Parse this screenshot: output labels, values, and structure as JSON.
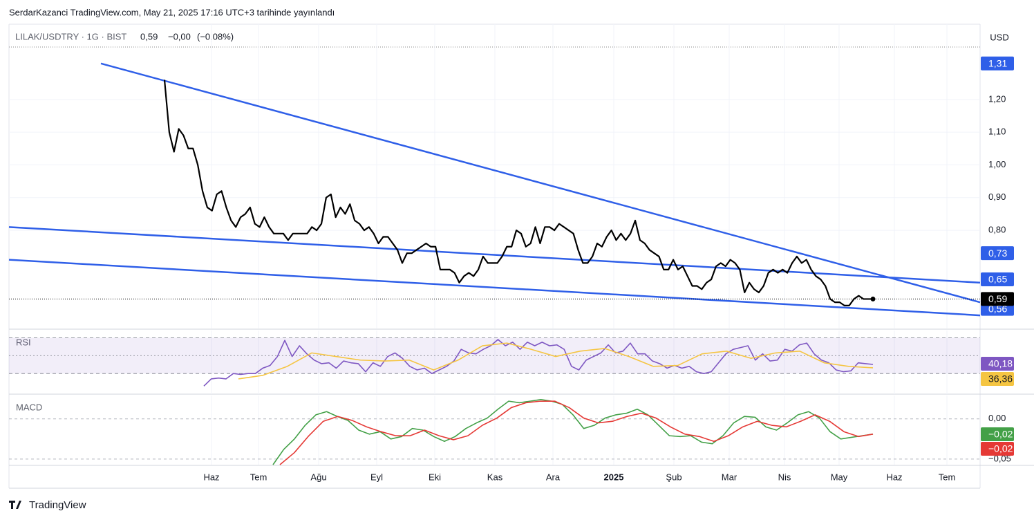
{
  "header": {
    "publisher": "SerdarKazanci TradingView.com, May 21, 2025 17:16 UTC+3 tarihinde yayınlandı",
    "symbol": "LILAK/USDTRY · 1G · BIST",
    "last": "0,59",
    "change": "−0,00",
    "change_pct": "(−0,08%)",
    "currency": "USD",
    "brand": "TradingView"
  },
  "chart_data": [
    {
      "type": "line",
      "title": "LILAK/USDTRY",
      "x_labels": [
        "Haz",
        "Tem",
        "Ağu",
        "Eyl",
        "Eki",
        "Kas",
        "Ara",
        "2025",
        "Şub",
        "Mar",
        "Nis",
        "May",
        "Haz",
        "Tem"
      ],
      "ylim": [
        0.5,
        1.43
      ],
      "yticks": [
        {
          "value": 0.8,
          "label": "0,80"
        },
        {
          "value": 0.9,
          "label": "0,90"
        },
        {
          "value": 1.0,
          "label": "1,00"
        },
        {
          "value": 1.1,
          "label": "1,10"
        },
        {
          "value": 1.2,
          "label": "1,20"
        }
      ],
      "grid": true,
      "series": [
        {
          "name": "LILAK/USDTRY",
          "color": "#000000",
          "values": [
            1.26,
            1.1,
            1.04,
            1.11,
            1.09,
            1.05,
            1.05,
            1.0,
            0.92,
            0.87,
            0.86,
            0.91,
            0.92,
            0.87,
            0.83,
            0.81,
            0.84,
            0.85,
            0.87,
            0.82,
            0.81,
            0.84,
            0.81,
            0.79,
            0.79,
            0.79,
            0.77,
            0.79,
            0.79,
            0.79,
            0.79,
            0.81,
            0.8,
            0.82,
            0.9,
            0.91,
            0.84,
            0.87,
            0.85,
            0.88,
            0.83,
            0.82,
            0.8,
            0.81,
            0.79,
            0.76,
            0.78,
            0.78,
            0.76,
            0.74,
            0.7,
            0.73,
            0.73,
            0.74,
            0.75,
            0.76,
            0.75,
            0.75,
            0.68,
            0.68,
            0.68,
            0.67,
            0.64,
            0.66,
            0.67,
            0.66,
            0.68,
            0.72,
            0.7,
            0.7,
            0.7,
            0.72,
            0.75,
            0.75,
            0.8,
            0.79,
            0.75,
            0.76,
            0.81,
            0.76,
            0.81,
            0.81,
            0.8,
            0.82,
            0.81,
            0.8,
            0.79,
            0.74,
            0.7,
            0.7,
            0.72,
            0.76,
            0.75,
            0.78,
            0.8,
            0.77,
            0.79,
            0.77,
            0.79,
            0.83,
            0.77,
            0.76,
            0.74,
            0.73,
            0.72,
            0.68,
            0.68,
            0.71,
            0.68,
            0.69,
            0.66,
            0.63,
            0.63,
            0.62,
            0.64,
            0.65,
            0.69,
            0.7,
            0.69,
            0.71,
            0.7,
            0.68,
            0.61,
            0.64,
            0.62,
            0.61,
            0.63,
            0.67,
            0.68,
            0.67,
            0.68,
            0.67,
            0.7,
            0.72,
            0.7,
            0.71,
            0.68,
            0.66,
            0.65,
            0.63,
            0.59,
            0.58,
            0.58,
            0.57,
            0.57,
            0.59,
            0.6,
            0.59,
            0.59,
            0.59
          ]
        }
      ],
      "trend_lines": [
        {
          "color": "#2f5fe8",
          "values": [
            1.31,
            0.58
          ]
        },
        {
          "color": "#2f5fe8",
          "values": [
            0.81,
            0.64
          ]
        },
        {
          "color": "#2f5fe8",
          "values": [
            0.71,
            0.54
          ]
        }
      ],
      "badges": [
        {
          "value": 1.31,
          "label": "1,31",
          "color": "#2f5fe8"
        },
        {
          "value": 0.73,
          "label": "0,73",
          "color": "#2f5fe8"
        },
        {
          "value": 0.65,
          "label": "0,65",
          "color": "#2f5fe8"
        },
        {
          "value": 0.56,
          "label": "0,56",
          "color": "#2f5fe8"
        },
        {
          "value": 0.59,
          "label": "0,59",
          "color": "#000000"
        }
      ]
    },
    {
      "type": "line",
      "title": "RSI",
      "ylim": [
        7,
        78
      ],
      "levels": [
        70,
        50,
        30
      ],
      "series": [
        {
          "name": "RSI",
          "color": "#7e57c2",
          "values": [
            16,
            24,
            25,
            24,
            30,
            29,
            30,
            30,
            36,
            39,
            49,
            67,
            49,
            61,
            52,
            45,
            41,
            42,
            36,
            44,
            42,
            41,
            32,
            42,
            38,
            49,
            53,
            47,
            38,
            34,
            36,
            30,
            34,
            38,
            44,
            57,
            53,
            52,
            57,
            61,
            68,
            61,
            65,
            57,
            65,
            61,
            65,
            61,
            62,
            57,
            38,
            34,
            45,
            49,
            53,
            62,
            53,
            55,
            64,
            52,
            52,
            44,
            41,
            36,
            39,
            36,
            38,
            32,
            30,
            32,
            42,
            52,
            57,
            59,
            61,
            45,
            52,
            44,
            45,
            57,
            55,
            62,
            64,
            52,
            45,
            42,
            34,
            32,
            33,
            42,
            41,
            40.18
          ]
        },
        {
          "name": "RSI MA",
          "color": "#f5c542",
          "values": [
            24,
            28,
            38,
            53,
            49,
            45,
            44,
            45,
            34,
            45,
            61,
            64,
            57,
            49,
            55,
            58,
            49,
            38,
            39,
            52,
            55,
            47,
            53,
            55,
            42,
            38,
            36.36
          ]
        }
      ],
      "badges": [
        {
          "value": 40.18,
          "label": "40,18",
          "color": "#7e57c2"
        },
        {
          "value": 36.36,
          "label": "36,36",
          "color": "#f5c542"
        }
      ]
    },
    {
      "type": "line",
      "title": "MACD",
      "ylim": [
        -0.057,
        0.029
      ],
      "yticks": [
        {
          "value": 0,
          "label": "0,00"
        },
        {
          "value": -0.05,
          "label": "−0,05"
        }
      ],
      "series": [
        {
          "name": "MACD",
          "color": "#43a047",
          "values": [
            -0.057,
            -0.038,
            -0.025,
            -0.008,
            0.005,
            0.009,
            0.003,
            -0.002,
            -0.014,
            -0.019,
            -0.016,
            -0.025,
            -0.022,
            -0.012,
            -0.014,
            -0.022,
            -0.028,
            -0.022,
            -0.012,
            -0.005,
            0.001,
            0.012,
            0.022,
            0.02,
            0.022,
            0.024,
            0.022,
            0.018,
            0.005,
            -0.012,
            -0.008,
            0.001,
            0.005,
            0.007,
            0.012,
            0.005,
            -0.008,
            -0.021,
            -0.022,
            -0.021,
            -0.029,
            -0.031,
            -0.021,
            -0.005,
            0.003,
            0.002,
            -0.01,
            -0.014,
            -0.005,
            0.005,
            0.009,
            0.001,
            -0.016,
            -0.025,
            -0.023,
            -0.021,
            -0.019
          ]
        },
        {
          "name": "Signal",
          "color": "#e53935",
          "values": [
            -0.057,
            -0.042,
            -0.021,
            -0.003,
            0.003,
            -0.002,
            -0.01,
            -0.016,
            -0.021,
            -0.021,
            -0.014,
            -0.021,
            -0.026,
            -0.021,
            -0.008,
            0.001,
            0.014,
            0.02,
            0.022,
            0.022,
            0.014,
            0.001,
            -0.005,
            -0.003,
            0.003,
            0.007,
            0.001,
            -0.01,
            -0.019,
            -0.022,
            -0.028,
            -0.021,
            -0.01,
            -0.003,
            -0.008,
            -0.01,
            -0.003,
            0.005,
            -0.003,
            -0.016,
            -0.022,
            -0.019
          ]
        }
      ],
      "badges": [
        {
          "value": -0.02,
          "label": "−0,02",
          "color": "#43a047"
        },
        {
          "value": -0.02,
          "label": "−0,02",
          "color": "#e53935"
        }
      ]
    }
  ]
}
